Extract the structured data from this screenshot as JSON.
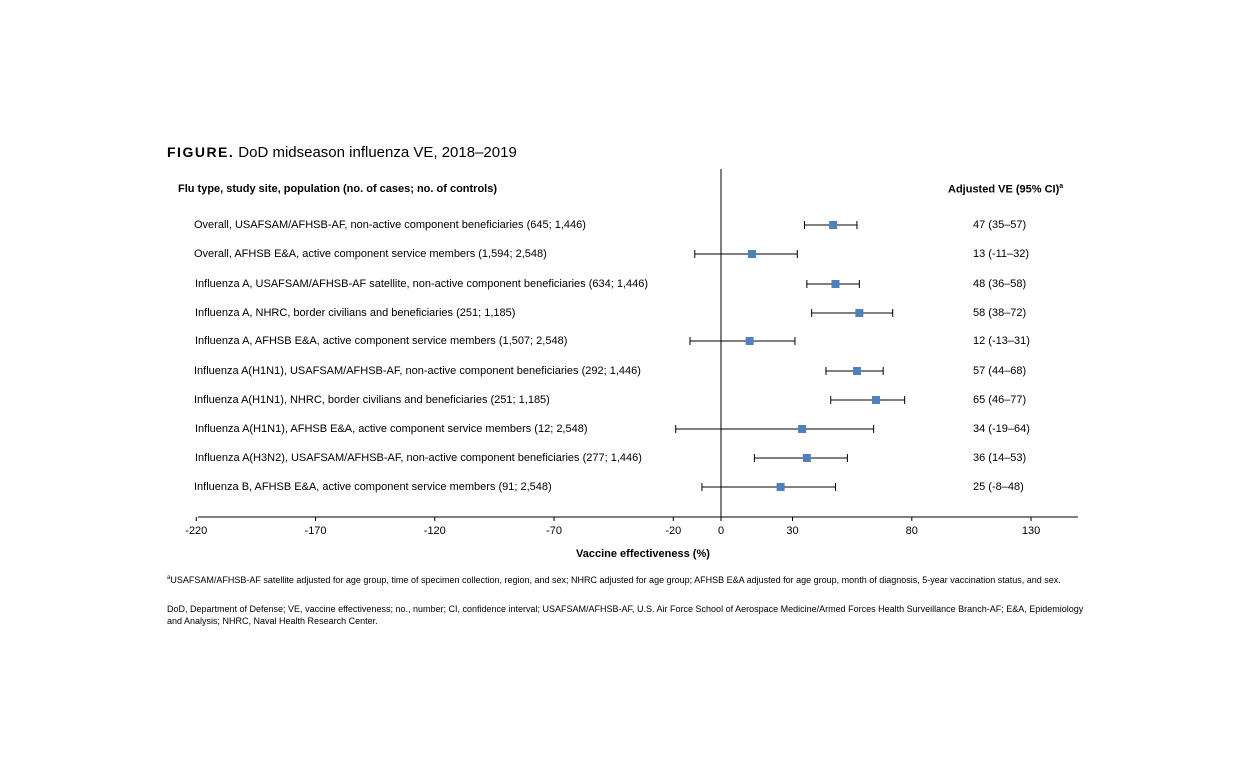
{
  "figure": {
    "label": "FIGURE.",
    "title": "DoD midseason influenza VE, 2018–2019"
  },
  "headers": {
    "left": "Flu type, study site, population (no. of cases; no. of controls)",
    "right": "Adjusted VE (95% CI)",
    "right_marker": "a"
  },
  "chart_data": {
    "type": "forest",
    "title": "DoD midseason influenza VE, 2018–2019",
    "xlabel": "Vaccine effectiveness (%)",
    "xlim": [
      -220,
      150
    ],
    "xticks": [
      -220,
      -170,
      -120,
      -70,
      -20,
      0,
      30,
      80,
      130
    ],
    "reference_line": 0,
    "marker_color": "#4f81bd",
    "rows": [
      {
        "label": "Overall, USAFSAM/AFHSB-AF, non-active component beneficiaries (645; 1,446)",
        "ve": 47,
        "lo": 35,
        "hi": 57,
        "ve_text": "47 (35–57)"
      },
      {
        "label": "Overall, AFHSB E&A, active component service members (1,594; 2,548)",
        "ve": 13,
        "lo": -11,
        "hi": 32,
        "ve_text": "13 (-11–32)"
      },
      {
        "label": "Influenza A, USAFSAM/AFHSB-AF satellite, non-active component beneficiaries (634; 1,446)",
        "ve": 48,
        "lo": 36,
        "hi": 58,
        "ve_text": "48 (36–58)"
      },
      {
        "label": "Influenza A, NHRC, border civilians and beneficiaries (251; 1,185)",
        "ve": 58,
        "lo": 38,
        "hi": 72,
        "ve_text": "58 (38–72)"
      },
      {
        "label": "Influenza A, AFHSB E&A, active component service members (1,507; 2,548)",
        "ve": 12,
        "lo": -13,
        "hi": 31,
        "ve_text": "12 (-13–31)"
      },
      {
        "label": "Influenza A(H1N1), USAFSAM/AFHSB-AF, non-active component beneficiaries (292; 1,446)",
        "ve": 57,
        "lo": 44,
        "hi": 68,
        "ve_text": "57 (44–68)"
      },
      {
        "label": "Influenza A(H1N1), NHRC, border civilians and beneficiaries (251; 1,185)",
        "ve": 65,
        "lo": 46,
        "hi": 77,
        "ve_text": "65 (46–77)"
      },
      {
        "label": "Influenza A(H1N1), AFHSB E&A, active component service members (12; 2,548)",
        "ve": 34,
        "lo": -19,
        "hi": 64,
        "ve_text": "34 (-19–64)"
      },
      {
        "label": "Influenza A(H3N2), USAFSAM/AFHSB-AF, non-active component beneficiaries (277; 1,446)",
        "ve": 36,
        "lo": 14,
        "hi": 53,
        "ve_text": "36 (14–53)"
      },
      {
        "label": "Influenza B, AFHSB E&A, active component service members (91; 2,548)",
        "ve": 25,
        "lo": -8,
        "hi": 48,
        "ve_text": "25 (-8–48)"
      }
    ]
  },
  "footnotes": {
    "a_marker": "a",
    "a_text": "USAFSAM/AFHSB-AF satellite adjusted for age group, time of specimen collection, region, and sex; NHRC adjusted for age group; AFHSB E&A adjusted for age group, month of diagnosis, 5-year vaccination status, and sex.",
    "abbreviations": "DoD, Department of Defense; VE, vaccine effectiveness; no., number; CI, confidence interval; USAFSAM/AFHSB-AF, U.S. Air Force School of Aerospace Medicine/Armed Forces Health Surveillance Branch-AF; E&A, Epidemiology and Analysis; NHRC, Naval Health Research Center."
  }
}
